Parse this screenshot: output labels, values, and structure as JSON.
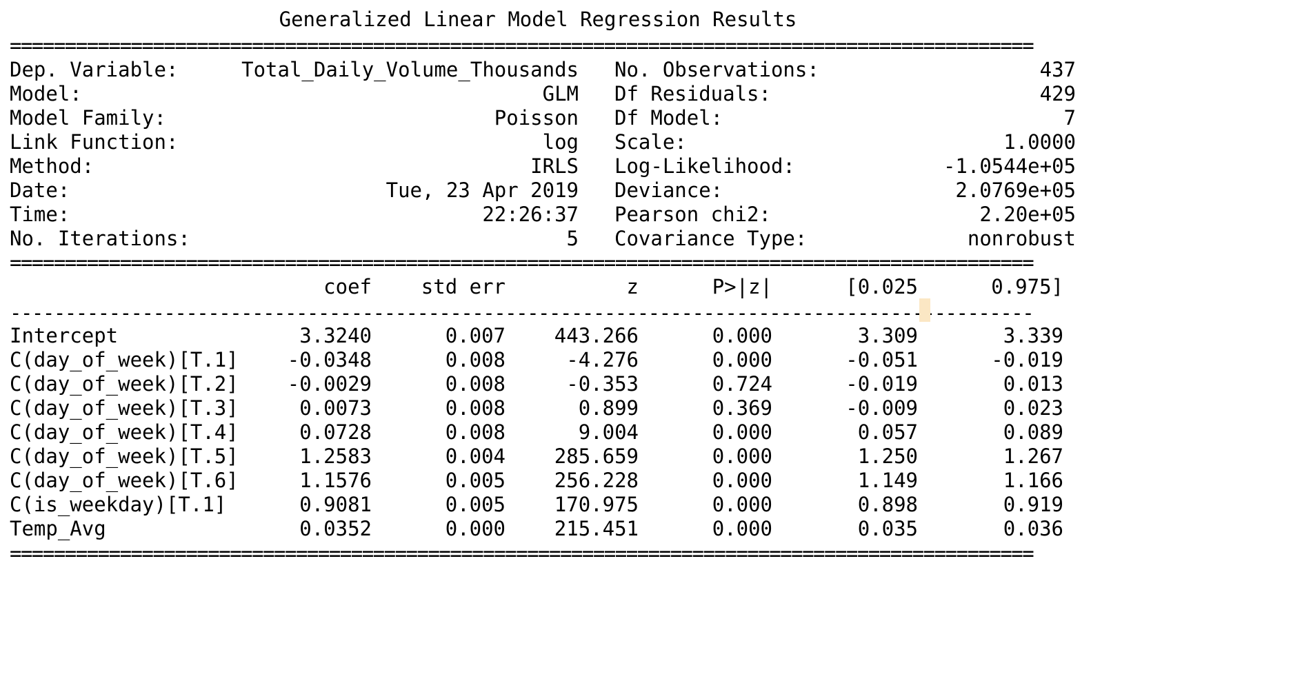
{
  "title": "Generalized Linear Model Regression Results",
  "rule_double": "=============================================================================================",
  "rule_single": "---------------------------------------------------------------------------------------------",
  "summary_left": [
    {
      "label": "Dep. Variable:",
      "value": "Total_Daily_Volume_Thousands"
    },
    {
      "label": "Model:",
      "value": "GLM"
    },
    {
      "label": "Model Family:",
      "value": "Poisson"
    },
    {
      "label": "Link Function:",
      "value": "log"
    },
    {
      "label": "Method:",
      "value": "IRLS"
    },
    {
      "label": "Date:",
      "value": "Tue, 23 Apr 2019"
    },
    {
      "label": "Time:",
      "value": "22:26:37"
    },
    {
      "label": "No. Iterations:",
      "value": "5"
    }
  ],
  "summary_right": [
    {
      "label": "No. Observations:",
      "value": "437"
    },
    {
      "label": "Df Residuals:",
      "value": "429"
    },
    {
      "label": "Df Model:",
      "value": "7"
    },
    {
      "label": "Scale:",
      "value": "1.0000"
    },
    {
      "label": "Log-Likelihood:",
      "value": "-1.0544e+05"
    },
    {
      "label": "Deviance:",
      "value": "2.0769e+05"
    },
    {
      "label": "Pearson chi2:",
      "value": "2.20e+05"
    },
    {
      "label": "Covariance Type:",
      "value": "nonrobust"
    }
  ],
  "coef_table": {
    "headers": [
      "coef",
      "std err",
      "z",
      "P>|z|",
      "[0.025",
      "0.975]"
    ],
    "rows": [
      {
        "name": "Intercept",
        "coef": "3.3240",
        "se": "0.007",
        "z": "443.266",
        "p": "0.000",
        "lo": "3.309",
        "hi": "3.339"
      },
      {
        "name": "C(day_of_week)[T.1]",
        "coef": "-0.0348",
        "se": "0.008",
        "z": "-4.276",
        "p": "0.000",
        "lo": "-0.051",
        "hi": "-0.019"
      },
      {
        "name": "C(day_of_week)[T.2]",
        "coef": "-0.0029",
        "se": "0.008",
        "z": "-0.353",
        "p": "0.724",
        "lo": "-0.019",
        "hi": "0.013"
      },
      {
        "name": "C(day_of_week)[T.3]",
        "coef": "0.0073",
        "se": "0.008",
        "z": "0.899",
        "p": "0.369",
        "lo": "-0.009",
        "hi": "0.023"
      },
      {
        "name": "C(day_of_week)[T.4]",
        "coef": "0.0728",
        "se": "0.008",
        "z": "9.004",
        "p": "0.000",
        "lo": "0.057",
        "hi": "0.089"
      },
      {
        "name": "C(day_of_week)[T.5]",
        "coef": "1.2583",
        "se": "0.004",
        "z": "285.659",
        "p": "0.000",
        "lo": "1.250",
        "hi": "1.267"
      },
      {
        "name": "C(day_of_week)[T.6]",
        "coef": "1.1576",
        "se": "0.005",
        "z": "256.228",
        "p": "0.000",
        "lo": "1.149",
        "hi": "1.166"
      },
      {
        "name": "C(is_weekday)[T.1]",
        "coef": "0.9081",
        "se": "0.005",
        "z": "170.975",
        "p": "0.000",
        "lo": "0.898",
        "hi": "0.919"
      },
      {
        "name": "Temp_Avg",
        "coef": "0.0352",
        "se": "0.000",
        "z": "215.451",
        "p": "0.000",
        "lo": "0.035",
        "hi": "0.036"
      }
    ]
  }
}
